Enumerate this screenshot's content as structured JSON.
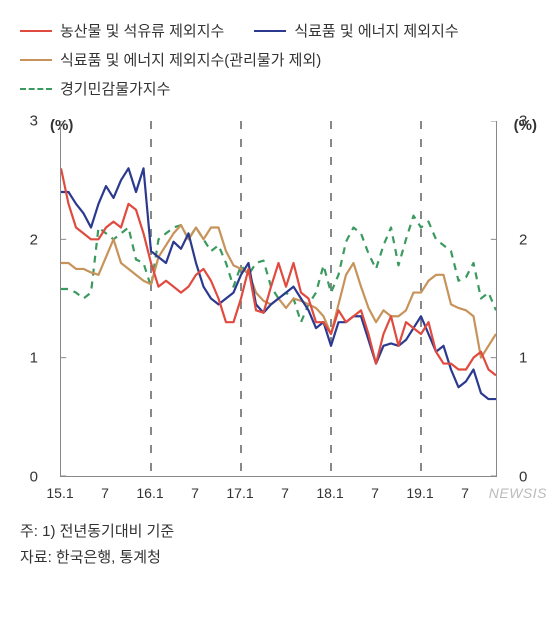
{
  "legend": {
    "s1": {
      "label": "농산물 및 석유류 제외지수",
      "color": "#e04a3f",
      "dash": "solid"
    },
    "s2": {
      "label": "식료품 및 에너지 제외지수",
      "color": "#2b3a8f",
      "dash": "solid"
    },
    "s3": {
      "label": "식료품 및 에너지 제외지수(관리물가 제외)",
      "color": "#c8935a",
      "dash": "solid"
    },
    "s4": {
      "label": "경기민감물가지수",
      "color": "#3a9a5f",
      "dash": "dashed"
    }
  },
  "chart": {
    "type": "line",
    "ylabel_left": "(%)",
    "ylabel_right": "(%)",
    "ylim": [
      0,
      3
    ],
    "yticks": [
      0,
      1,
      2,
      3
    ],
    "xlim": [
      0,
      58
    ],
    "xticks": [
      {
        "pos": 0,
        "label": "15.1"
      },
      {
        "pos": 6,
        "label": "7"
      },
      {
        "pos": 12,
        "label": "16.1"
      },
      {
        "pos": 18,
        "label": "7"
      },
      {
        "pos": 24,
        "label": "17.1"
      },
      {
        "pos": 30,
        "label": "7"
      },
      {
        "pos": 36,
        "label": "18.1"
      },
      {
        "pos": 42,
        "label": "7"
      },
      {
        "pos": 48,
        "label": "19.1"
      },
      {
        "pos": 54,
        "label": "7"
      }
    ],
    "vgrid": [
      12,
      24,
      36,
      48
    ],
    "vgrid_color": "#888",
    "background_color": "#ffffff",
    "line_width": 2.2,
    "series": {
      "s1": [
        2.6,
        2.3,
        2.1,
        2.05,
        2.0,
        2.0,
        2.1,
        2.15,
        2.1,
        2.3,
        2.25,
        2.05,
        1.8,
        1.6,
        1.65,
        1.6,
        1.55,
        1.6,
        1.7,
        1.75,
        1.65,
        1.5,
        1.3,
        1.3,
        1.5,
        1.75,
        1.4,
        1.38,
        1.6,
        1.8,
        1.6,
        1.8,
        1.55,
        1.5,
        1.3,
        1.3,
        1.2,
        1.4,
        1.3,
        1.35,
        1.4,
        1.2,
        0.95,
        1.2,
        1.35,
        1.1,
        1.3,
        1.25,
        1.2,
        1.3,
        1.05,
        0.95,
        0.95,
        0.9,
        0.9,
        1.0,
        1.05,
        0.9,
        0.85
      ],
      "s2": [
        2.4,
        2.4,
        2.3,
        2.22,
        2.1,
        2.3,
        2.45,
        2.35,
        2.5,
        2.6,
        2.4,
        2.6,
        1.9,
        1.85,
        1.8,
        1.98,
        1.92,
        2.05,
        1.8,
        1.6,
        1.5,
        1.45,
        1.5,
        1.55,
        1.7,
        1.8,
        1.45,
        1.38,
        1.45,
        1.5,
        1.55,
        1.6,
        1.5,
        1.4,
        1.25,
        1.3,
        1.1,
        1.3,
        1.3,
        1.35,
        1.35,
        1.15,
        0.95,
        1.1,
        1.12,
        1.1,
        1.15,
        1.25,
        1.35,
        1.2,
        1.05,
        1.1,
        0.9,
        0.75,
        0.8,
        0.9,
        0.7,
        0.65,
        0.65
      ],
      "s3": [
        1.8,
        1.8,
        1.75,
        1.75,
        1.72,
        1.7,
        1.85,
        2.0,
        1.8,
        1.75,
        1.7,
        1.65,
        1.62,
        1.85,
        1.95,
        2.05,
        2.12,
        2.0,
        2.1,
        2.0,
        2.1,
        2.1,
        1.9,
        1.78,
        1.75,
        1.72,
        1.55,
        1.48,
        1.45,
        1.5,
        1.42,
        1.5,
        1.48,
        1.45,
        1.42,
        1.35,
        1.2,
        1.45,
        1.7,
        1.8,
        1.6,
        1.42,
        1.3,
        1.4,
        1.35,
        1.35,
        1.4,
        1.55,
        1.55,
        1.65,
        1.7,
        1.7,
        1.45,
        1.42,
        1.4,
        1.35,
        1.0,
        1.1,
        1.2
      ],
      "s4": [
        1.58,
        1.58,
        1.55,
        1.5,
        1.55,
        2.1,
        2.05,
        2.0,
        2.05,
        2.1,
        1.83,
        1.8,
        1.6,
        2.0,
        2.05,
        2.1,
        2.12,
        2.0,
        2.1,
        2.0,
        1.9,
        1.95,
        1.8,
        1.6,
        1.78,
        1.7,
        1.8,
        1.82,
        1.6,
        1.5,
        1.55,
        1.5,
        1.3,
        1.45,
        1.55,
        1.78,
        1.55,
        1.7,
        1.98,
        2.1,
        2.05,
        1.88,
        1.75,
        1.95,
        2.1,
        1.78,
        2.0,
        2.2,
        2.1,
        2.15,
        2.0,
        1.95,
        1.9,
        1.65,
        1.68,
        1.8,
        1.5,
        1.55,
        1.4
      ]
    }
  },
  "footnote": {
    "note": "주: 1) 전년동기대비 기준",
    "source": "자료: 한국은행, 통계청"
  },
  "watermark": "NEWSIS"
}
